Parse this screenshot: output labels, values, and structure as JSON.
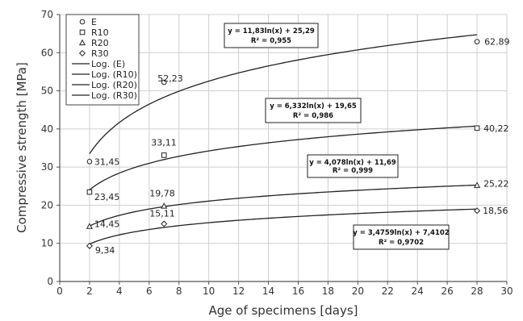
{
  "chart_data": {
    "type": "scatter",
    "xlabel": "Age of specimens [days]",
    "ylabel": "Compressive strength [MPa]",
    "xlim": [
      0,
      30
    ],
    "ylim": [
      0,
      70
    ],
    "xticks": [
      0,
      2,
      4,
      6,
      8,
      10,
      12,
      14,
      16,
      18,
      20,
      22,
      24,
      26,
      28,
      30
    ],
    "yticks": [
      0,
      10,
      20,
      30,
      40,
      50,
      60,
      70
    ],
    "grid": true,
    "legend_position": "top-left",
    "x": [
      2,
      7,
      28
    ],
    "series": [
      {
        "name": "E",
        "marker": "circle",
        "values": [
          31.45,
          52.23,
          62.89
        ],
        "labels": [
          "31,45",
          "52,23",
          "62.89"
        ],
        "fit_name": "Log. (E)",
        "fit_a": 11.83,
        "fit_b": 25.29,
        "equation": "y = 11,83ln(x) + 25,29",
        "r2": "R² = 0,955"
      },
      {
        "name": "R10",
        "marker": "square",
        "values": [
          23.45,
          33.11,
          40.22
        ],
        "labels": [
          "23,45",
          "33,11",
          "40,22"
        ],
        "fit_name": "Log. (R10)",
        "fit_a": 6.332,
        "fit_b": 19.65,
        "equation": "y = 6,332ln(x) + 19,65",
        "r2": "R² = 0,986"
      },
      {
        "name": "R20",
        "marker": "triangle",
        "values": [
          14.45,
          19.78,
          25.22
        ],
        "labels": [
          "14,45",
          "19,78",
          "25,22"
        ],
        "fit_name": "Log. (R20)",
        "fit_a": 4.078,
        "fit_b": 11.69,
        "equation": "y = 4,078ln(x) + 11,69",
        "r2": "R² = 0,999"
      },
      {
        "name": "R30",
        "marker": "diamond",
        "values": [
          9.34,
          15.11,
          18.56
        ],
        "labels": [
          "9,34",
          "15,11",
          "18,56"
        ],
        "fit_name": "Log. (R30)",
        "fit_a": 3.4759,
        "fit_b": 7.4102,
        "equation": "y = 3,4759ln(x) + 7,4102",
        "r2": "R² = 0,9702"
      }
    ],
    "colors": {
      "line": "#222222",
      "grid": "#cfcfcf",
      "axis": "#555555"
    }
  }
}
